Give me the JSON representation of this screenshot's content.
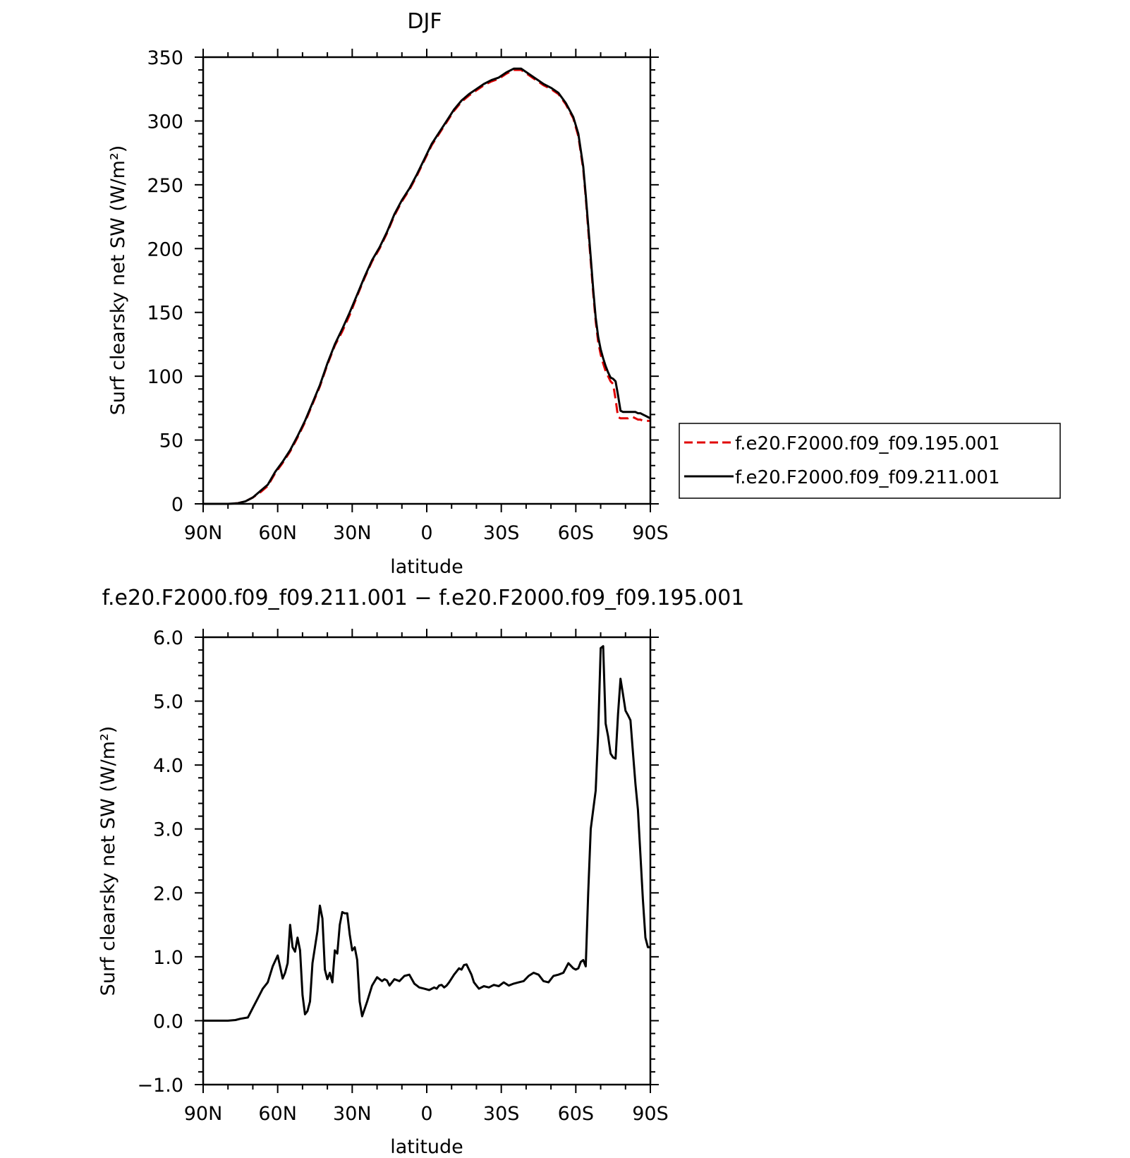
{
  "chart_data": [
    {
      "type": "line",
      "title": "DJF",
      "xlabel": "latitude",
      "ylabel": "Surf clearsky net SW (W/m²)",
      "xlim": [
        90,
        -90
      ],
      "ylim": [
        0,
        350
      ],
      "x_ticks": [
        {
          "value": 90,
          "label": "90N"
        },
        {
          "value": 60,
          "label": "60N"
        },
        {
          "value": 30,
          "label": "30N"
        },
        {
          "value": 0,
          "label": "0"
        },
        {
          "value": -30,
          "label": "30S"
        },
        {
          "value": -60,
          "label": "60S"
        },
        {
          "value": -90,
          "label": "90S"
        }
      ],
      "y_ticks": [
        {
          "value": 0,
          "label": "0"
        },
        {
          "value": 50,
          "label": "50"
        },
        {
          "value": 100,
          "label": "100"
        },
        {
          "value": 150,
          "label": "150"
        },
        {
          "value": 200,
          "label": "200"
        },
        {
          "value": 250,
          "label": "250"
        },
        {
          "value": 300,
          "label": "300"
        },
        {
          "value": 350,
          "label": "350"
        }
      ],
      "legend_position": "right",
      "series": [
        {
          "name": "f.e20.F2000.f09_f09.195.001",
          "color": "#e00000",
          "dash": "dashed",
          "x": [
            90,
            85,
            80,
            76,
            73,
            70,
            67,
            64,
            61,
            58,
            55,
            52,
            49,
            46,
            43,
            40,
            37,
            34,
            31,
            28,
            25,
            22,
            19,
            16,
            13,
            10,
            7,
            4,
            1,
            -2,
            -5,
            -8,
            -11,
            -14,
            -17,
            -20,
            -23,
            -26,
            -29,
            -32,
            -35,
            -38,
            -41,
            -44,
            -47,
            -50,
            -53,
            -56,
            -59,
            -61,
            -63,
            -64,
            -65,
            -66,
            -67,
            -68,
            -69,
            -70,
            -71,
            -72,
            -73,
            -74,
            -75,
            -76,
            -77,
            -78,
            -79,
            -80,
            -81,
            -82,
            -83,
            -84,
            -85,
            -86,
            -87,
            -88,
            -89,
            -90
          ],
          "values": [
            0,
            0,
            0,
            0.5,
            2,
            5,
            9,
            14,
            24,
            32,
            41,
            52,
            64,
            78,
            92,
            109,
            124,
            135,
            148,
            163,
            177,
            190,
            200,
            212,
            226,
            237,
            246,
            257,
            269,
            281,
            290,
            299,
            308,
            315,
            320,
            324,
            328,
            331,
            333,
            337,
            340,
            340,
            336,
            332,
            328,
            325,
            321,
            313,
            302,
            288,
            262,
            240,
            215,
            190,
            165,
            143,
            127,
            117,
            110,
            104,
            100,
            96,
            94,
            82,
            68,
            67,
            67,
            67,
            67,
            68,
            68,
            67,
            66,
            66,
            65,
            65,
            65,
            65
          ]
        },
        {
          "name": "f.e20.F2000.f09_f09.211.001",
          "color": "#000000",
          "dash": "solid",
          "x": [
            90,
            85,
            80,
            76,
            73,
            70,
            67,
            64,
            61,
            58,
            55,
            52,
            49,
            46,
            43,
            40,
            37,
            34,
            31,
            28,
            25,
            22,
            19,
            16,
            13,
            10,
            7,
            4,
            1,
            -2,
            -5,
            -8,
            -11,
            -14,
            -17,
            -20,
            -23,
            -26,
            -29,
            -32,
            -35,
            -38,
            -41,
            -44,
            -47,
            -50,
            -53,
            -56,
            -59,
            -61,
            -63,
            -64,
            -65,
            -66,
            -67,
            -68,
            -69,
            -70,
            -71,
            -72,
            -73,
            -74,
            -75,
            -76,
            -77,
            -78,
            -79,
            -80,
            -81,
            -82,
            -83,
            -84,
            -85,
            -86,
            -87,
            -88,
            -89,
            -90
          ],
          "values": [
            0,
            0,
            0,
            0.5,
            2,
            5,
            10,
            15,
            25,
            33,
            42,
            53,
            65,
            79,
            93,
            110,
            125,
            137,
            150,
            164,
            178,
            191,
            201,
            213,
            227,
            238,
            247,
            258,
            270,
            282,
            291,
            300,
            309,
            316,
            321,
            325,
            329,
            332,
            334,
            338,
            341,
            341,
            337,
            333,
            329,
            326,
            322,
            314,
            303,
            290,
            264,
            242,
            218,
            193,
            168,
            146,
            131,
            121,
            114,
            108,
            103,
            99,
            98,
            96,
            85,
            73,
            72,
            72,
            72,
            72,
            72,
            72,
            71,
            71,
            70,
            69,
            68,
            67
          ]
        }
      ]
    },
    {
      "type": "line",
      "title": "f.e20.F2000.f09_f09.211.001 − f.e20.F2000.f09_f09.195.001",
      "xlabel": "latitude",
      "ylabel": "Surf clearsky net SW (W/m²)",
      "xlim": [
        90,
        -90
      ],
      "ylim": [
        -1,
        6
      ],
      "x_ticks": [
        {
          "value": 90,
          "label": "90N"
        },
        {
          "value": 60,
          "label": "60N"
        },
        {
          "value": 30,
          "label": "30N"
        },
        {
          "value": 0,
          "label": "0"
        },
        {
          "value": -30,
          "label": "30S"
        },
        {
          "value": -60,
          "label": "60S"
        },
        {
          "value": -90,
          "label": "90S"
        }
      ],
      "y_ticks": [
        {
          "value": -1,
          "label": "−1.0"
        },
        {
          "value": 0,
          "label": "0.0"
        },
        {
          "value": 1,
          "label": "1.0"
        },
        {
          "value": 2,
          "label": "2.0"
        },
        {
          "value": 3,
          "label": "3.0"
        },
        {
          "value": 4,
          "label": "4.0"
        },
        {
          "value": 5,
          "label": "5.0"
        },
        {
          "value": 6,
          "label": "6.0"
        }
      ],
      "series": [
        {
          "color": "#000000",
          "dash": "solid",
          "x": [
            90,
            80,
            77,
            75,
            72,
            70,
            68,
            66,
            64,
            62,
            60,
            58,
            57,
            56,
            55,
            54,
            53,
            52,
            51,
            50,
            49,
            48,
            47,
            46,
            45,
            44,
            43,
            42,
            41,
            40,
            39,
            38,
            37,
            36,
            35,
            34,
            33,
            32,
            31,
            30,
            29,
            28,
            27,
            26,
            24,
            22,
            20,
            18,
            17,
            16,
            15,
            13,
            11,
            9,
            7,
            5,
            3,
            1,
            -1,
            -3,
            -4,
            -5,
            -6,
            -7,
            -8,
            -9,
            -11,
            -13,
            -14,
            -15,
            -16,
            -17,
            -18,
            -19,
            -20,
            -21,
            -23,
            -25,
            -27,
            -29,
            -31,
            -33,
            -35,
            -37,
            -39,
            -41,
            -43,
            -45,
            -47,
            -49,
            -51,
            -53,
            -55,
            -57,
            -59,
            -60,
            -61,
            -62,
            -63,
            -64,
            -65,
            -66,
            -67,
            -68,
            -69,
            -70,
            -71,
            -72,
            -73,
            -74,
            -75,
            -76,
            -77,
            -78,
            -79,
            -80,
            -81,
            -82,
            -83,
            -84,
            -85,
            -86,
            -87,
            -88,
            -89,
            -90
          ],
          "values": [
            0,
            0,
            0.01,
            0.03,
            0.05,
            0.2,
            0.35,
            0.5,
            0.6,
            0.85,
            1.02,
            0.66,
            0.75,
            0.9,
            1.5,
            1.15,
            1.08,
            1.3,
            1.1,
            0.4,
            0.1,
            0.15,
            0.3,
            0.9,
            1.15,
            1.4,
            1.8,
            1.6,
            0.8,
            0.65,
            0.75,
            0.6,
            1.1,
            1.05,
            1.5,
            1.7,
            1.68,
            1.68,
            1.35,
            1.1,
            1.15,
            0.95,
            0.3,
            0.07,
            0.3,
            0.55,
            0.68,
            0.62,
            0.65,
            0.63,
            0.55,
            0.65,
            0.62,
            0.7,
            0.72,
            0.58,
            0.52,
            0.5,
            0.48,
            0.52,
            0.5,
            0.55,
            0.56,
            0.52,
            0.55,
            0.6,
            0.72,
            0.82,
            0.8,
            0.87,
            0.88,
            0.8,
            0.72,
            0.6,
            0.55,
            0.5,
            0.54,
            0.52,
            0.56,
            0.54,
            0.6,
            0.55,
            0.58,
            0.6,
            0.62,
            0.7,
            0.75,
            0.72,
            0.62,
            0.6,
            0.7,
            0.72,
            0.75,
            0.9,
            0.82,
            0.8,
            0.82,
            0.92,
            0.95,
            0.85,
            2.0,
            3.0,
            3.3,
            3.6,
            4.5,
            5.83,
            5.86,
            4.65,
            4.45,
            4.18,
            4.12,
            4.1,
            4.8,
            5.35,
            5.1,
            4.85,
            4.78,
            4.7,
            4.2,
            3.7,
            3.3,
            2.6,
            1.9,
            1.3,
            1.15,
            1.15
          ]
        }
      ]
    }
  ]
}
